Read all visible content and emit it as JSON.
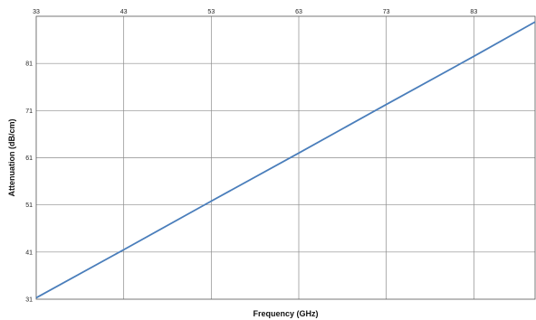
{
  "chart_data": {
    "type": "line",
    "title": "",
    "xlabel": "Frequency (GHz)",
    "ylabel": "Attenuation (dB/cm)",
    "xlim": [
      33,
      90
    ],
    "ylim": [
      31,
      91
    ],
    "x_ticks": [
      "33",
      "43",
      "53",
      "63",
      "73",
      "83"
    ],
    "y_ticks": [
      "31",
      "41",
      "51",
      "61",
      "71",
      "81"
    ],
    "x_ticks_position": "top",
    "grid": true,
    "legend": "none",
    "series": [
      {
        "x": [
          33,
          43,
          53,
          63,
          73,
          83,
          90
        ],
        "y": [
          31.3,
          41.5,
          51.8,
          62,
          72.3,
          82.5,
          89.8
        ],
        "color": "#4a7ebb"
      }
    ]
  }
}
